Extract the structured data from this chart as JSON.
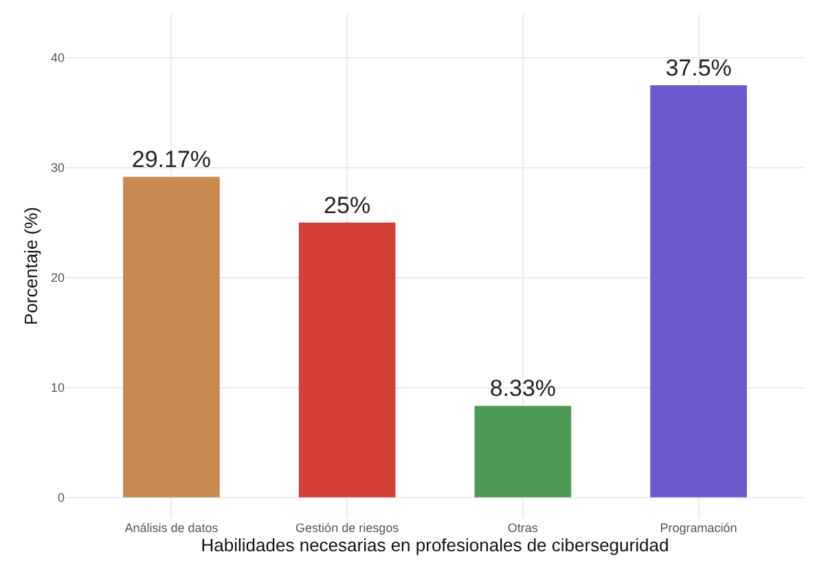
{
  "chart_data": {
    "type": "bar",
    "xlabel": "Habilidades necesarias en profesionales de ciberseguridad",
    "ylabel": "Porcentaje (%)",
    "categories": [
      "Análisis de datos",
      "Gestión de riesgos",
      "Otras",
      "Programación"
    ],
    "values": [
      29.17,
      25,
      8.33,
      37.5
    ],
    "colors": [
      "#c98a4f",
      "#d43f3a",
      "#4e9a55",
      "#6a5acd"
    ],
    "value_labels": [
      "29.17%",
      "25%",
      "8.33%",
      "37.5%"
    ],
    "ylim": [
      -1.9,
      44
    ],
    "yticks": [
      0,
      10,
      20,
      30,
      40
    ],
    "grid": true,
    "legend": false
  }
}
